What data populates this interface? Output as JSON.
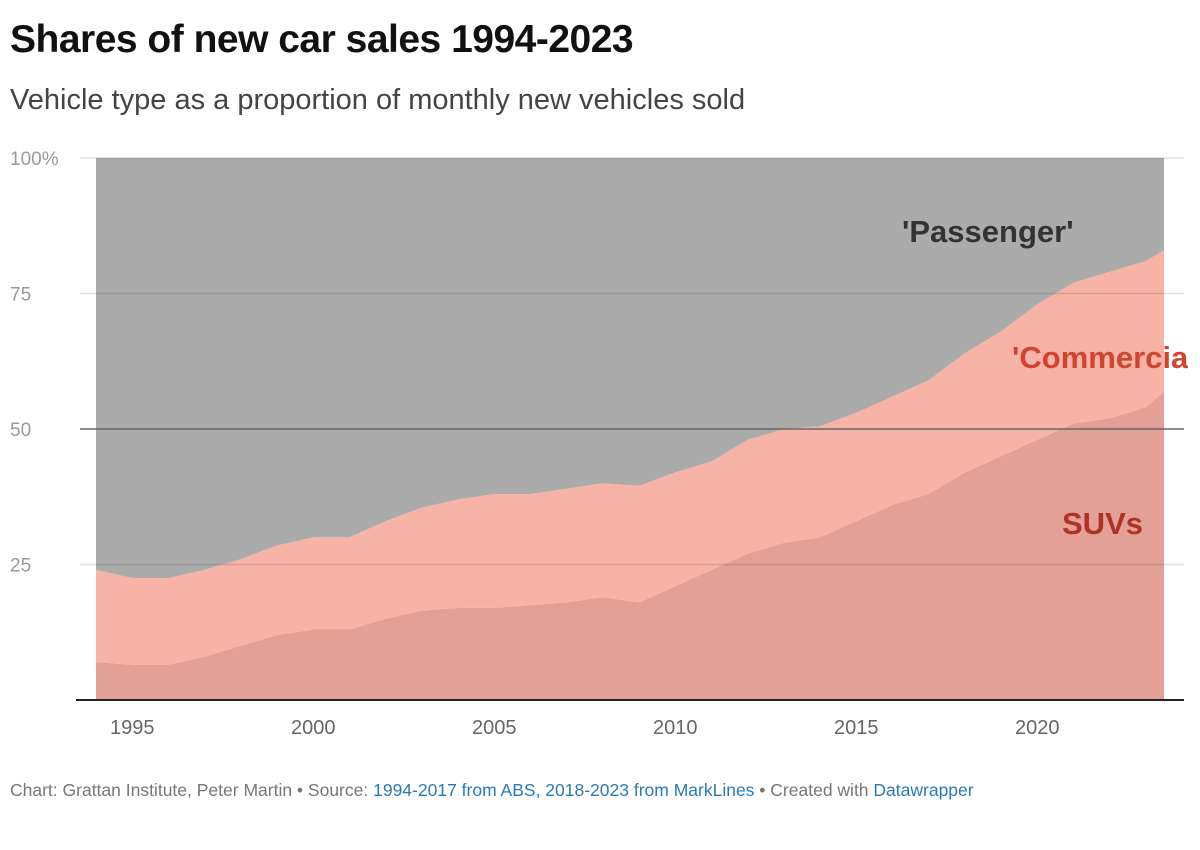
{
  "header": {
    "title": "Shares of new car sales 1994-2023",
    "subtitle": "Vehicle type as a proportion of monthly new vehicles sold"
  },
  "footer": {
    "chart_credit": "Chart: Grattan Institute, Peter Martin",
    "separator": " • ",
    "source_label": "Source: ",
    "source_link": "1994-2017 from ABS, 2018-2023 from MarkLines",
    "created_with": "Created with ",
    "datawrapper_link": "Datawrapper"
  },
  "colors": {
    "passenger": "#ababab",
    "commercial": "#f6b3a6",
    "suv": "#e3a097",
    "passenger_label": "#333333",
    "commercial_label": "#d04531",
    "suv_label": "#b03225"
  },
  "chart_data": {
    "type": "area",
    "stacked": true,
    "title": "Shares of new car sales 1994-2023",
    "subtitle": "Vehicle type as a proportion of monthly new vehicles sold",
    "xlim": [
      1994,
      2023.5
    ],
    "ylim": [
      0,
      100
    ],
    "x_ticks": [
      "1995",
      "2000",
      "2005",
      "2010",
      "2015",
      "2020"
    ],
    "y_ticks": [
      "100%",
      "75",
      "50",
      "25"
    ],
    "grid": "horizontal",
    "x": [
      1994,
      1995,
      1996,
      1997,
      1998,
      1999,
      2000,
      2001,
      2002,
      2003,
      2004,
      2005,
      2006,
      2007,
      2008,
      2009,
      2010,
      2011,
      2012,
      2013,
      2014,
      2015,
      2016,
      2017,
      2018,
      2019,
      2020,
      2021,
      2022,
      2023,
      2023.5
    ],
    "series": [
      {
        "name": "SUVs",
        "values": [
          7,
          6.5,
          6.5,
          8,
          10,
          12,
          13,
          13,
          15,
          16.5,
          17,
          17,
          17.5,
          18,
          19,
          18,
          21,
          24,
          27,
          29,
          30,
          33,
          36,
          38,
          42,
          45,
          48,
          51,
          52,
          54,
          57
        ]
      },
      {
        "name": "'Commercial'",
        "values": [
          17,
          16,
          16,
          16,
          16,
          16.5,
          17,
          17,
          18,
          19,
          20,
          21,
          20.5,
          21,
          21,
          21.5,
          21,
          20,
          21,
          21,
          20.5,
          20,
          20,
          21,
          22,
          23,
          25,
          26,
          27,
          27,
          26
        ]
      },
      {
        "name": "'Passenger'",
        "values": [
          76,
          77.5,
          77.5,
          76,
          74,
          71.5,
          70,
          70,
          67,
          64.5,
          63,
          62,
          62,
          61,
          60,
          60.5,
          58,
          56,
          52,
          50,
          49.5,
          47,
          44,
          41,
          36,
          32,
          27,
          23,
          21,
          19,
          17
        ]
      }
    ],
    "labels": {
      "passenger": "'Passenger'",
      "commercial": "'Commercial'",
      "suv": "SUVs"
    }
  }
}
